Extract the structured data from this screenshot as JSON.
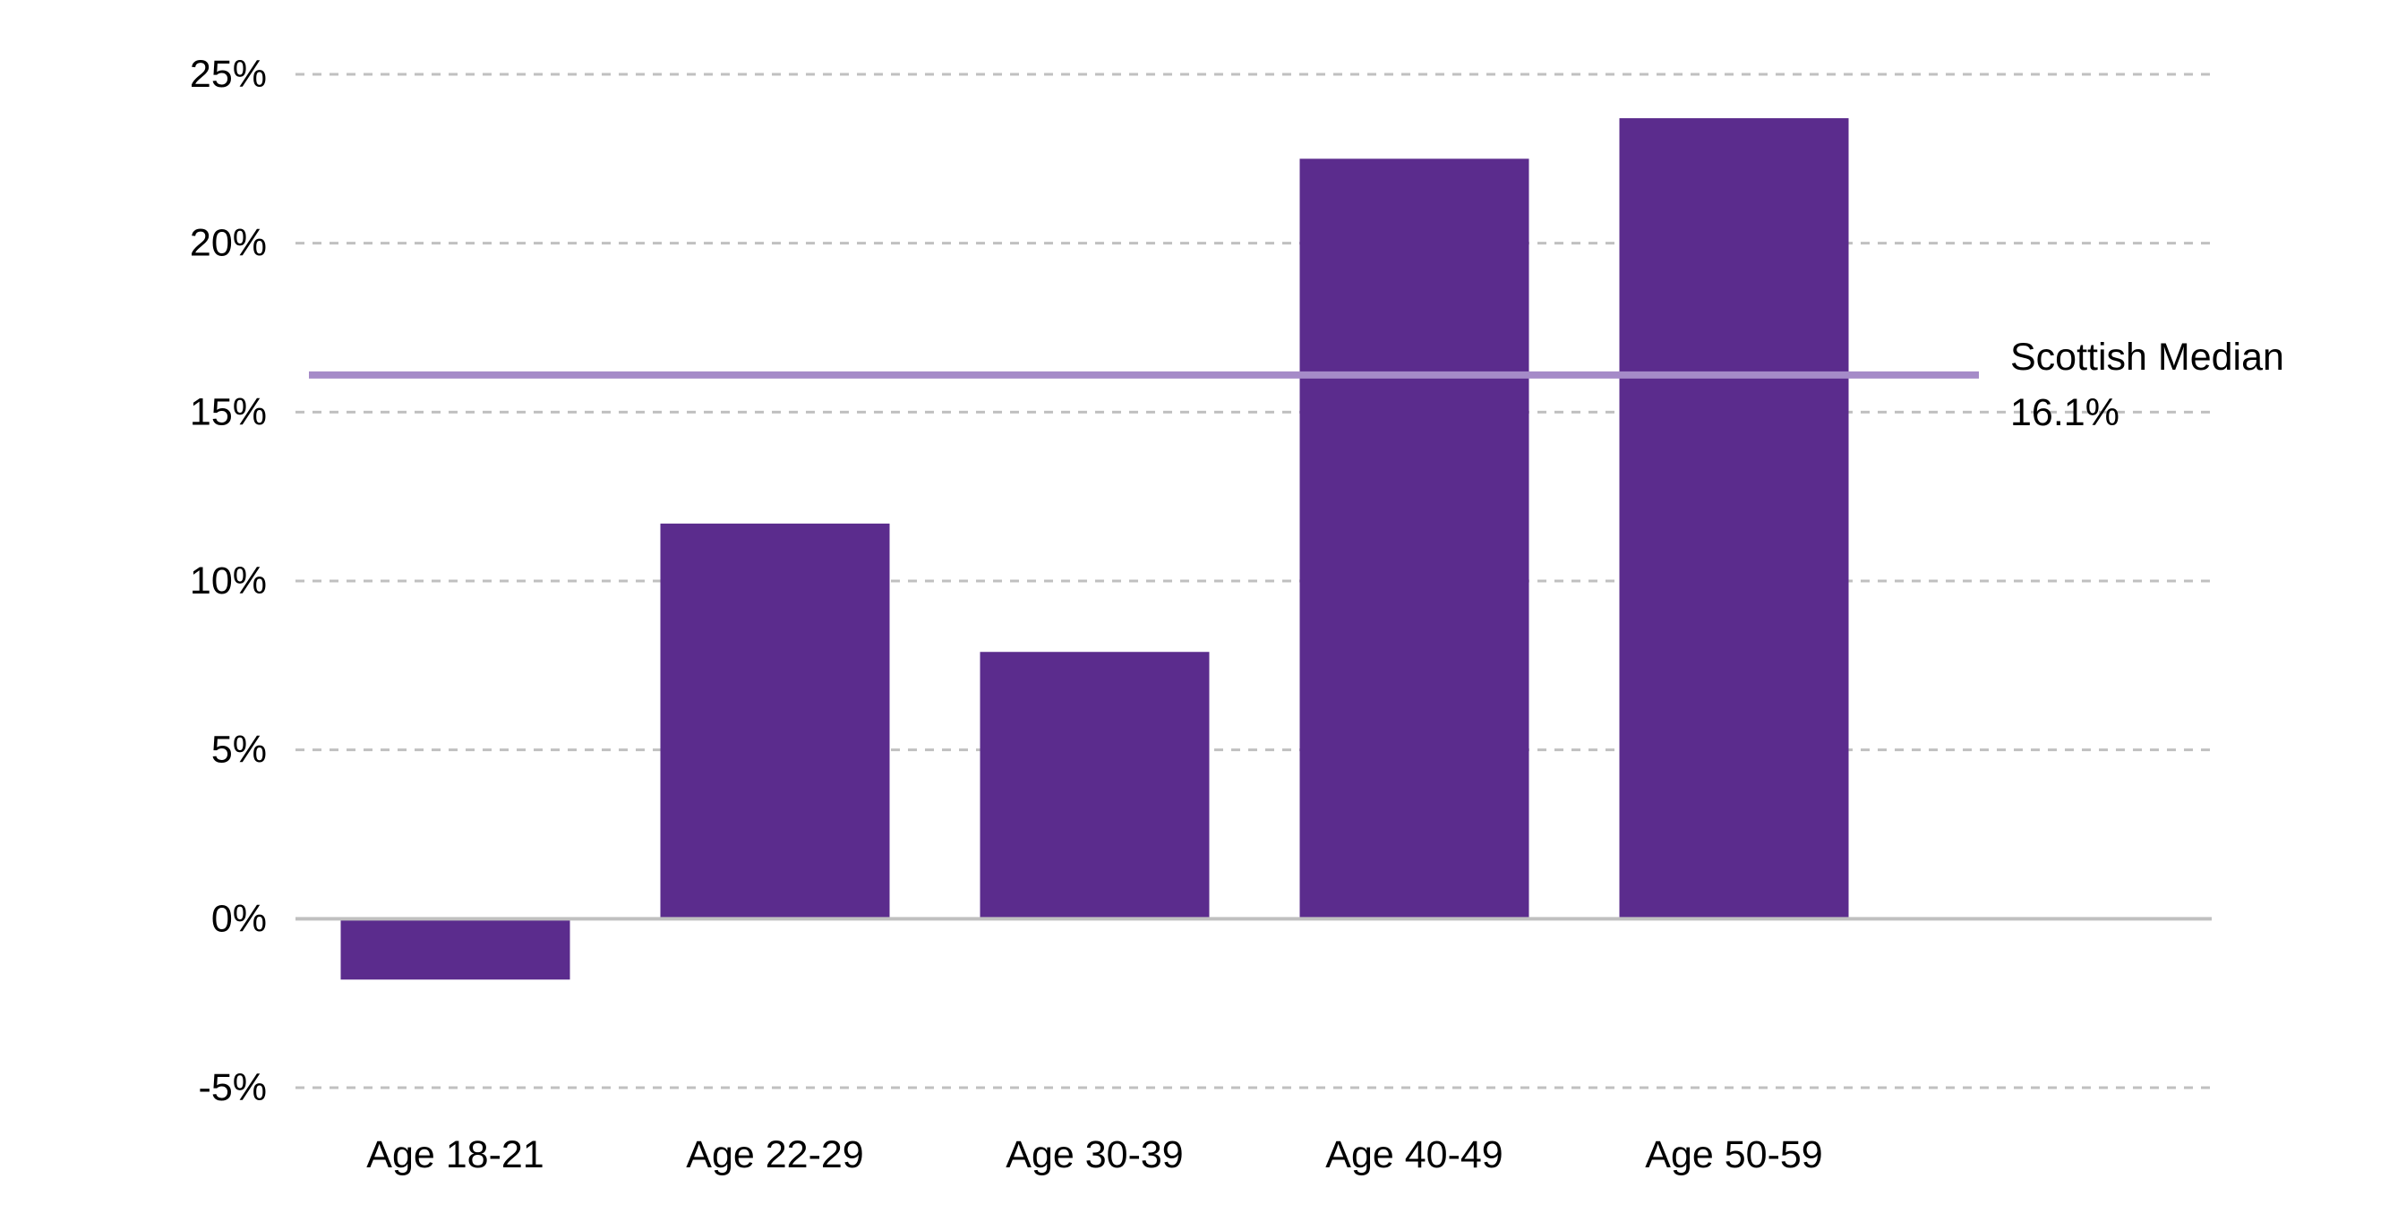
{
  "chart_data": {
    "type": "bar",
    "title": "",
    "xlabel": "",
    "ylabel": "",
    "categories": [
      "Age 18-21",
      "Age 22-29",
      "Age 30-39",
      "Age 40-49",
      "Age 50-59"
    ],
    "values": [
      -1.8,
      11.7,
      7.9,
      22.5,
      23.7
    ],
    "ylim": [
      -5,
      25
    ],
    "yticks": [
      -5,
      0,
      5,
      10,
      15,
      20,
      25
    ],
    "ytick_labels": [
      "-5%",
      "0%",
      "5%",
      "10%",
      "15%",
      "20%",
      "25%"
    ],
    "grid": true,
    "legend": "none",
    "reference_line": {
      "value": 16.1,
      "label_line1": "Scottish Median",
      "label_line2": "16.1%"
    },
    "colors": {
      "bar": "#5B2C8D",
      "reference_line": "#A58BC8",
      "grid": "#C0C0C0",
      "zero_axis": "#C0C0C0"
    }
  }
}
